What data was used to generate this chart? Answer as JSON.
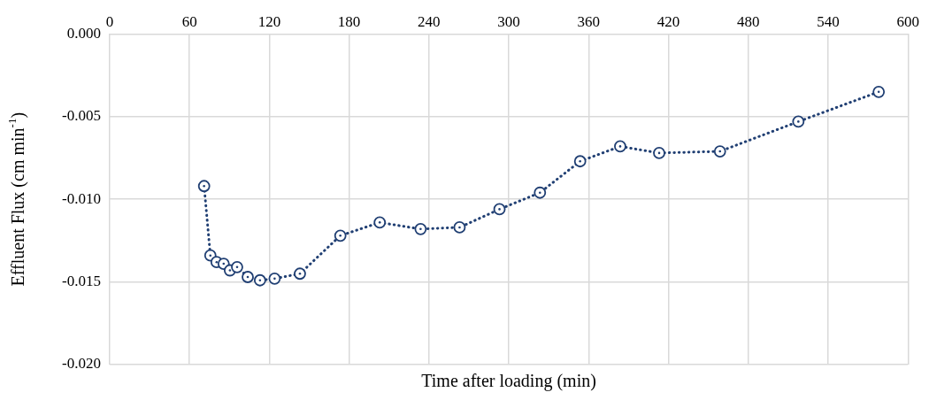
{
  "chart_data": {
    "type": "line",
    "xlabel": "Time after loading (min)",
    "ylabel": "Effluent Flux (cm min$^{-1}$)",
    "x": [
      71,
      75.7,
      80.4,
      85.7,
      90.4,
      95.8,
      103.8,
      113,
      124,
      143,
      173.4,
      203,
      233.7,
      263,
      293,
      323.4,
      353.6,
      383.7,
      413,
      458.7,
      517.6,
      578
    ],
    "series": [
      {
        "color": "#203f73",
        "values": [
          -0.0092,
          -0.0134,
          -0.0138,
          -0.0139,
          -0.0143,
          -0.0141,
          -0.0147,
          -0.0149,
          -0.0148,
          -0.0145,
          -0.0122,
          -0.0114,
          -0.0118,
          -0.0117,
          -0.0106,
          -0.0096,
          -0.0077,
          -0.0068,
          -0.0072,
          -0.0071,
          -0.0053,
          -0.0035
        ]
      }
    ],
    "xlim": [
      0,
      600
    ],
    "xticks": [
      0,
      60,
      120,
      180,
      240,
      300,
      360,
      420,
      480,
      540,
      600
    ],
    "ylim": [
      -0.02,
      0
    ],
    "yticks": [
      {
        "value": 0,
        "label": "0.000"
      },
      {
        "value": -0.005,
        "label": "-0.005"
      },
      {
        "value": -0.01,
        "label": "-0.010"
      },
      {
        "value": -0.015,
        "label": "-0.015"
      },
      {
        "value": -0.02,
        "label": "-0.020"
      }
    ],
    "grid": true,
    "legend": false,
    "marker": "circle",
    "line_style": "dotted"
  }
}
